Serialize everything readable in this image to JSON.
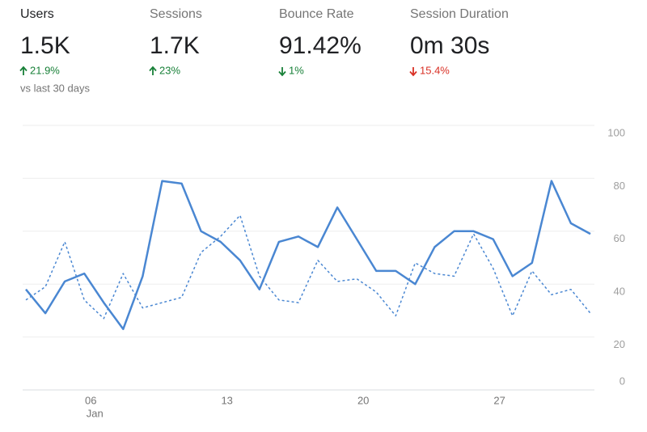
{
  "metrics": [
    {
      "label": "Users",
      "value": "1.5K",
      "change": "21.9%",
      "direction": "up",
      "color": "#188038",
      "label_color": "#202124"
    },
    {
      "label": "Sessions",
      "value": "1.7K",
      "change": "23%",
      "direction": "up",
      "color": "#188038",
      "label_color": "#757575"
    },
    {
      "label": "Bounce Rate",
      "value": "91.42%",
      "change": "1%",
      "direction": "down",
      "color": "#188038",
      "label_color": "#757575"
    },
    {
      "label": "Session Duration",
      "value": "0m 30s",
      "change": "15.4%",
      "direction": "down",
      "color": "#d93025",
      "label_color": "#757575"
    }
  ],
  "comparison": "vs last 30 days",
  "chart_data": {
    "type": "line",
    "categories": [
      null,
      null,
      null,
      "06",
      null,
      null,
      null,
      null,
      null,
      null,
      "13",
      null,
      null,
      null,
      null,
      null,
      null,
      "20",
      null,
      null,
      null,
      null,
      null,
      null,
      "27",
      null,
      null,
      null,
      null,
      null
    ],
    "x_sublabel": "Jan",
    "series": [
      {
        "color": "#4a87d2",
        "dashed": false,
        "values": [
          38,
          29,
          41,
          44,
          33,
          23,
          43,
          79,
          78,
          60,
          56,
          49,
          38,
          56,
          58,
          54,
          69,
          57,
          45,
          45,
          40,
          54,
          60,
          60,
          57,
          43,
          48,
          79,
          63,
          59
        ]
      },
      {
        "color": "#4a87d2",
        "dashed": true,
        "values": [
          34,
          39,
          56,
          34,
          27,
          44,
          31,
          33,
          35,
          52,
          58,
          66,
          43,
          34,
          33,
          49,
          41,
          42,
          37,
          28,
          48,
          44,
          43,
          59,
          46,
          28,
          45,
          36,
          38,
          29
        ]
      }
    ],
    "ylim": [
      0,
      100
    ],
    "yticks": [
      0,
      20,
      40,
      60,
      80,
      100
    ],
    "grid": true,
    "y_axis_side": "right"
  }
}
